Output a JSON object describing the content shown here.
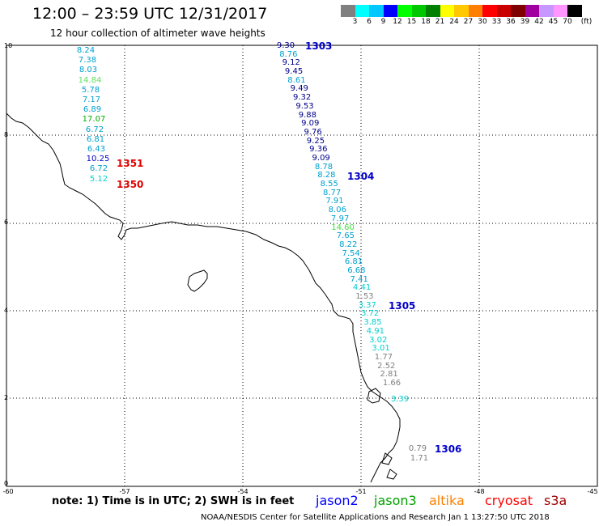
{
  "header": {
    "title": "12:00 – 23:59 UTC 12/31/2017",
    "subtitle": "12 hour collection of altimeter wave heights"
  },
  "legend": {
    "unit": "(ft)",
    "colors": [
      "#808080",
      "#00ffff",
      "#00c8ff",
      "#0000ff",
      "#00ff00",
      "#00c800",
      "#008000",
      "#ffff00",
      "#ffc800",
      "#ff8000",
      "#ff0000",
      "#c80000",
      "#800000",
      "#a000a0",
      "#c896ff",
      "#ff96ff",
      "#000000"
    ],
    "labels": [
      "3",
      "6",
      "9",
      "12",
      "15",
      "18",
      "21",
      "24",
      "27",
      "30",
      "33",
      "36",
      "39",
      "42",
      "45",
      "70"
    ]
  },
  "axes": {
    "y_ticks": [
      "10",
      "8",
      "6",
      "4",
      "2",
      "0"
    ],
    "x_ticks": [
      "-60",
      "-57",
      "-54",
      "-51",
      "-48",
      "-45"
    ]
  },
  "track_1303": {
    "label": "1303",
    "color": "#0000c8",
    "values": [
      "9.30",
      "8.76",
      "9.12",
      "9.45",
      "8.61",
      "9.49",
      "9.32",
      "9.53",
      "9.88",
      "9.09",
      "9.76",
      "9.25",
      "9.36",
      "9.09",
      "8.78",
      "8.28",
      "8.55",
      "8.77",
      "7.91",
      "8.06",
      "7.97",
      "14.60",
      "7.65",
      "8.22",
      "7.54",
      "6.81",
      "6.68",
      "7.41",
      "4.41",
      "1.53",
      "3.37",
      "3.72",
      "3.85",
      "4.91",
      "3.02",
      "3.01",
      "1.77",
      "2.52",
      "2.81",
      "1.66"
    ],
    "colors": [
      "#00008b",
      "#00a0d0",
      "#00008b",
      "#00008b",
      "#00a0d0",
      "#00008b",
      "#00008b",
      "#00008b",
      "#00008b",
      "#00008b",
      "#00008b",
      "#00008b",
      "#00008b",
      "#00008b",
      "#00a0d0",
      "#00a0d0",
      "#00a0d0",
      "#00a0d0",
      "#00a0d0",
      "#00a0d0",
      "#00a0d0",
      "#40e040",
      "#00a0d0",
      "#00a0d0",
      "#00a0d0",
      "#00a0d0",
      "#00a0d0",
      "#00a0d0",
      "#00d0d0",
      "#808080",
      "#00d0d0",
      "#00d0d0",
      "#00d0d0",
      "#00d0d0",
      "#00d0d0",
      "#00d0d0",
      "#808080",
      "#808080",
      "#808080",
      "#808080"
    ]
  },
  "track_1304": {
    "label": "1304",
    "color": "#0000c8"
  },
  "track_1305": {
    "label": "1305",
    "color": "#0000c8"
  },
  "track_1306": {
    "label": "1306",
    "color": "#0000c8",
    "values": [
      "0.79",
      "1.71"
    ]
  },
  "track_1305_extra": {
    "value": "3.39",
    "color": "#00d0d0"
  },
  "track_1351": {
    "label": "1351",
    "color": "#e00000",
    "values": [
      "8.24",
      "7.38",
      "8.03",
      "14.84",
      "5.78",
      "7.17",
      "6.89",
      "17.07",
      "6.72",
      "6.81",
      "6.43",
      "10.25",
      "6.72",
      "5.12"
    ],
    "colors": [
      "#00a0d0",
      "#00a0d0",
      "#00a0d0",
      "#60e060",
      "#00a0d0",
      "#00a0d0",
      "#00a0d0",
      "#00b000",
      "#00a0d0",
      "#00a0d0",
      "#00a0d0",
      "#0000c8",
      "#00a0d0",
      "#00d0d0"
    ]
  },
  "track_1350": {
    "label": "1350",
    "color": "#e00000"
  },
  "note": "note:  1) Time is in UTC;  2) SWH is in feet",
  "satellites": [
    {
      "name": "jason2",
      "color": "#0000ff"
    },
    {
      "name": "jason3",
      "color": "#00a000"
    },
    {
      "name": "altika",
      "color": "#ff8000"
    },
    {
      "name": "cryosat",
      "color": "#ff0000"
    },
    {
      "name": "s3a",
      "color": "#a00000"
    }
  ],
  "credit": "NOAA/NESDIS Center for Satellite Applications and Research      Jan  1 13:27:50 UTC 2018"
}
